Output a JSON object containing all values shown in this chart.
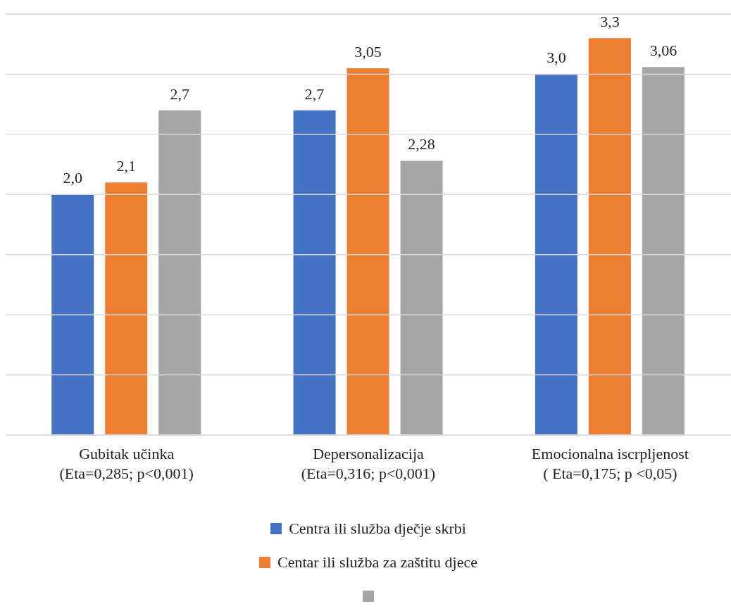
{
  "chart_data": {
    "type": "bar",
    "categories": [
      "Gubitak učinka\n(Eta=0,285; p<0,001)",
      "Depersonalizacija\n(Eta=0,316; p<0,001)",
      "Emocionalna iscrpljenost\n( Eta=0,175; p <0,05)"
    ],
    "series": [
      {
        "name": "Centra ili služba dječje skrbi",
        "color": "#4472c4",
        "values": [
          2.0,
          2.7,
          3.0
        ],
        "value_labels": [
          "2,0",
          "2,7",
          "3,0"
        ]
      },
      {
        "name": "Centar ili služba za zaštitu djece",
        "color": "#ed7d31",
        "values": [
          2.1,
          3.05,
          3.3
        ],
        "value_labels": [
          "2,1",
          "3,05",
          "3,3"
        ]
      },
      {
        "color": "#a5a5a5",
        "values": [
          2.7,
          2.28,
          3.06
        ],
        "value_labels": [
          "2,7",
          "2,28",
          "3,06"
        ]
      }
    ],
    "ylim": [
      0,
      3.5
    ],
    "yticks": [
      {
        "value": 0,
        "label": null
      },
      {
        "value": 0.5,
        "label": null
      },
      {
        "value": 1,
        "label": null
      },
      {
        "value": 1.5,
        "label": null
      },
      {
        "value": 2,
        "label": null
      },
      {
        "value": 2.5,
        "label": null
      },
      {
        "value": 3,
        "label": null
      },
      {
        "value": 3.5,
        "label": null
      }
    ],
    "tick_labels": "x",
    "grid": "y",
    "legend": "bottom"
  }
}
